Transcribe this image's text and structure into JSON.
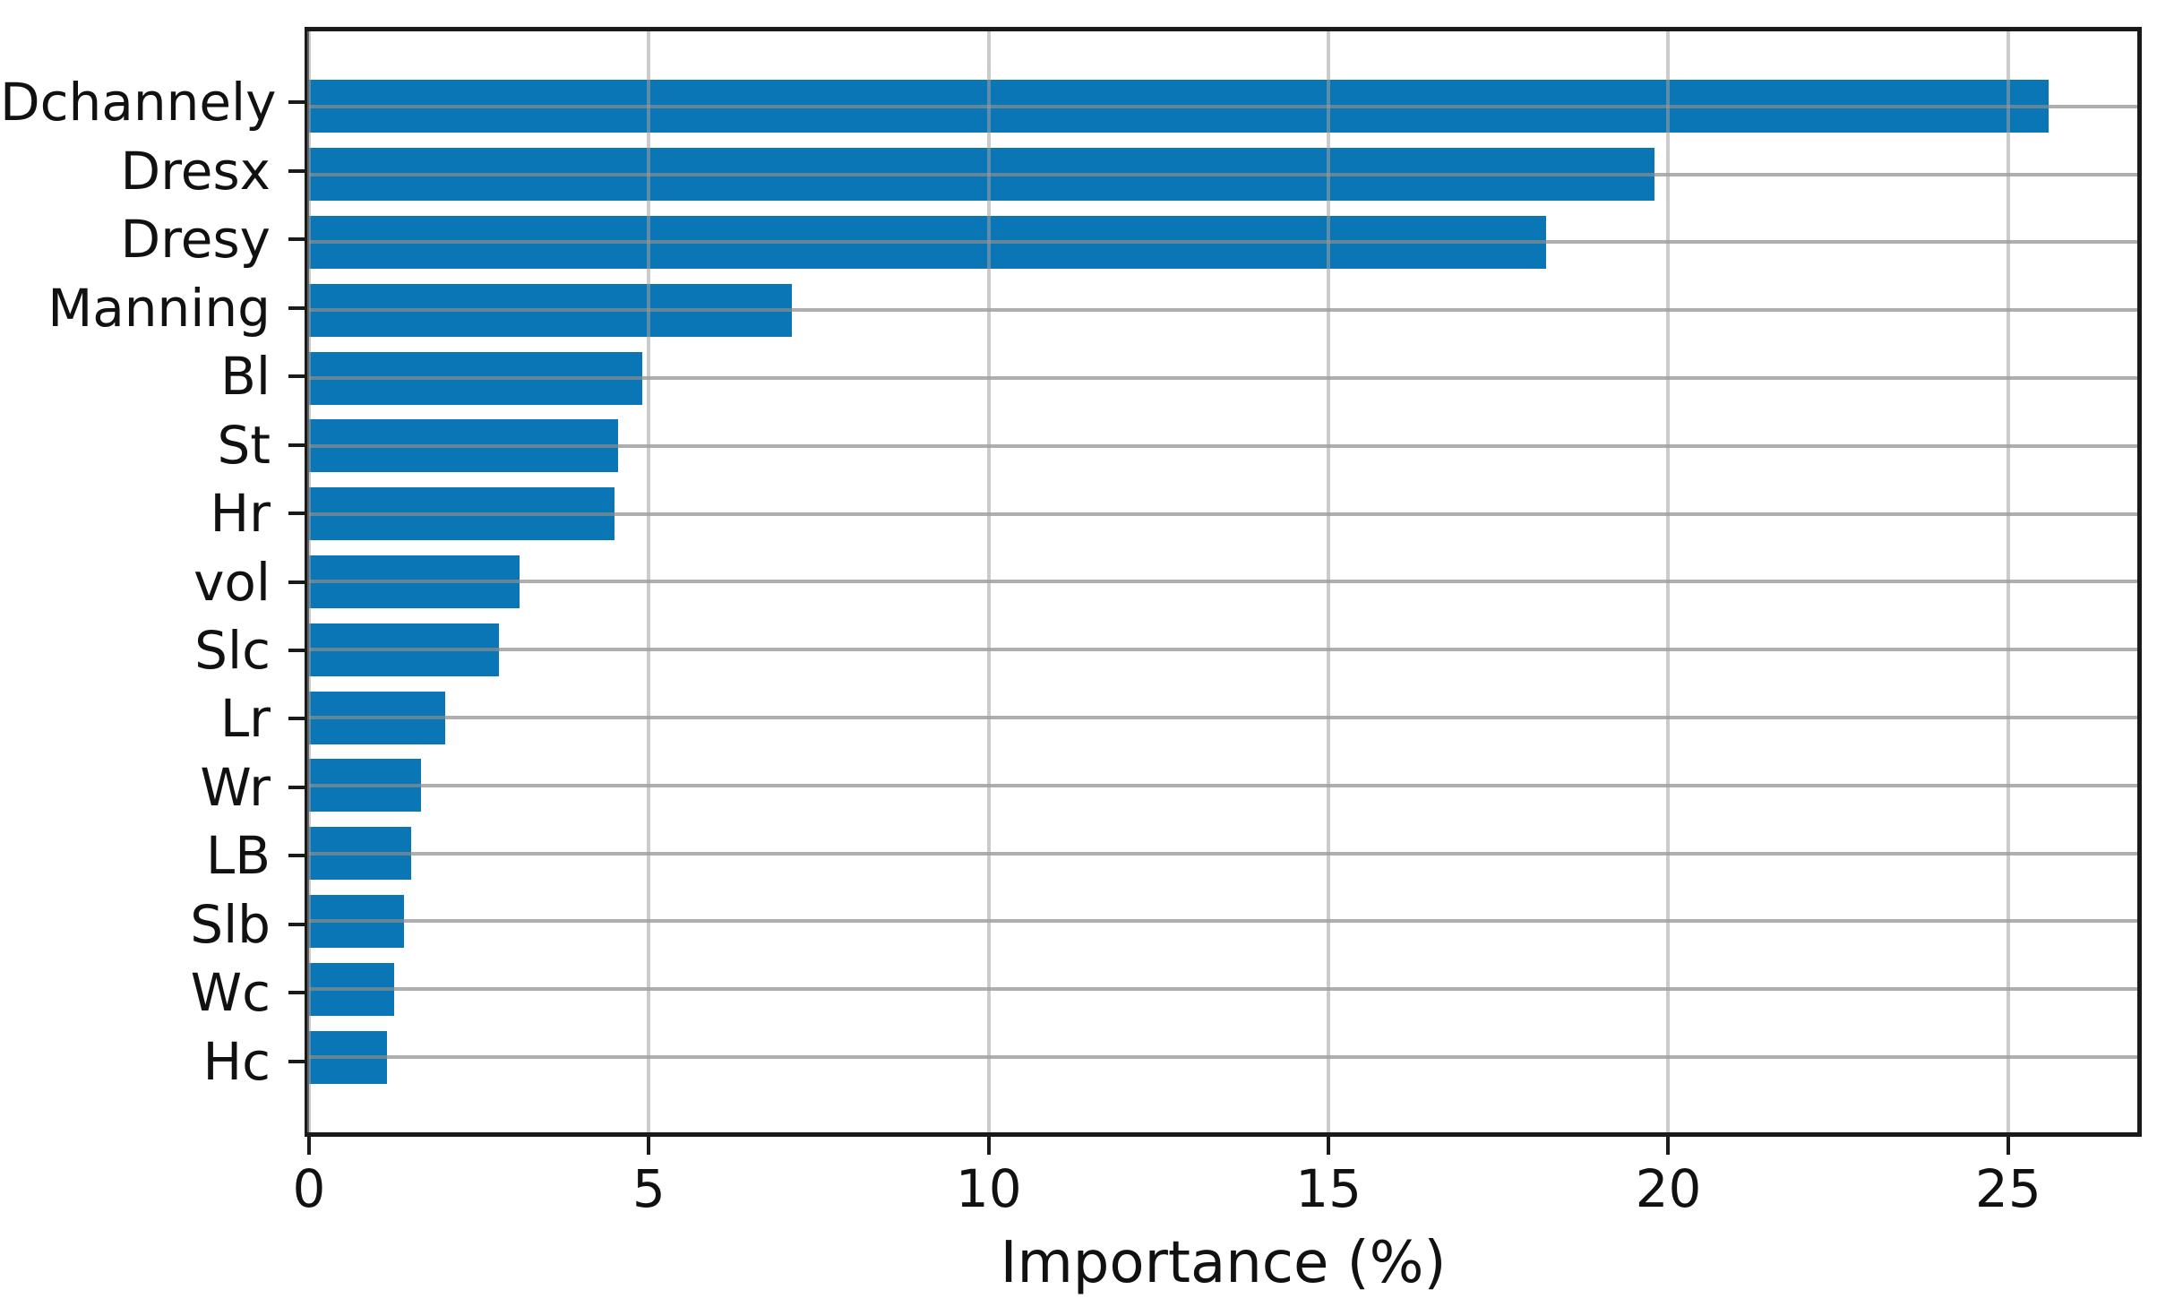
{
  "chart_data": {
    "type": "bar",
    "orientation": "horizontal",
    "title": "",
    "xlabel": "Importance (%)",
    "ylabel": "",
    "categories": [
      "Dchannely",
      "Dresx",
      "Dresy",
      "Manning",
      "Bl",
      "St",
      "Hr",
      "vol",
      "Slc",
      "Lr",
      "Wr",
      "LB",
      "Slb",
      "Wc",
      "Hc"
    ],
    "values": [
      25.6,
      19.8,
      18.2,
      7.1,
      4.9,
      4.55,
      4.5,
      3.1,
      2.8,
      2.0,
      1.65,
      1.5,
      1.4,
      1.25,
      1.15
    ],
    "x_ticks": [
      0,
      5,
      10,
      15,
      20,
      25
    ],
    "xlim": [
      0,
      26.9
    ],
    "grid": true,
    "legend": false,
    "bar_color": "#0b76b6",
    "grid_color": "#8c8c8c",
    "spine_color": "#1a1a1a",
    "text_color": "#111111"
  }
}
